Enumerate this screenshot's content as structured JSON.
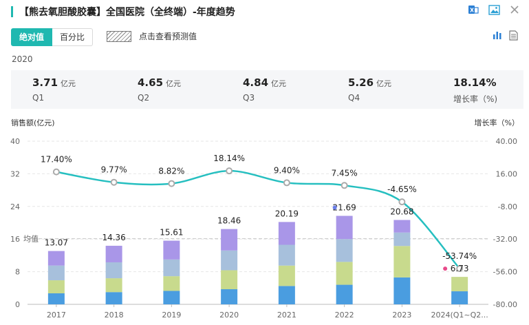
{
  "header": {
    "title": "【熊去氧胆酸胶囊】全国医院（全终端）-年度趋势",
    "icons": [
      "export-excel-icon",
      "image-icon",
      "close-icon"
    ]
  },
  "toolbar": {
    "tabs": [
      {
        "label": "绝对值",
        "active": true
      },
      {
        "label": "百分比",
        "active": false
      }
    ],
    "forecast_label": "点击查看预测值",
    "view_icons": [
      "bar-chart-icon",
      "table-icon"
    ]
  },
  "summary": {
    "year": "2020",
    "stats": [
      {
        "value": "3.71",
        "unit": "亿元",
        "label": "Q1"
      },
      {
        "value": "4.65",
        "unit": "亿元",
        "label": "Q2"
      },
      {
        "value": "4.84",
        "unit": "亿元",
        "label": "Q3"
      },
      {
        "value": "5.26",
        "unit": "亿元",
        "label": "Q4"
      },
      {
        "value": "18.14%",
        "unit": "",
        "label": "增长率（%)"
      }
    ]
  },
  "colors": {
    "accent": "#1fb8b0",
    "q1": "#4a9de0",
    "q2": "#c8da8d",
    "q3": "#a7c0dc",
    "q4": "#a996e8",
    "line": "#26bfc0",
    "marker_blue": "#6a7ee8",
    "marker_pink": "#e84a8a"
  },
  "chart_data": {
    "type": "bar",
    "stacked": true,
    "categories": [
      "2017",
      "2018",
      "2019",
      "2020",
      "2021",
      "2022",
      "2023",
      "2024(Q1~Q2..."
    ],
    "series": [
      {
        "values": [
          2.7,
          3.0,
          3.3,
          3.71,
          4.5,
          4.8,
          6.6,
          3.2
        ]
      },
      {
        "values": [
          3.2,
          3.4,
          3.6,
          4.65,
          5.0,
          5.6,
          7.7,
          3.53
        ]
      },
      {
        "values": [
          3.6,
          3.9,
          4.1,
          4.84,
          5.1,
          5.6,
          3.3,
          0
        ]
      },
      {
        "values": [
          3.57,
          4.06,
          4.61,
          5.26,
          5.59,
          5.69,
          3.08,
          0
        ]
      }
    ],
    "totals": [
      "13.07",
      "14.36",
      "15.61",
      "18.46",
      "20.19",
      "21.69",
      "20.68",
      "6.73"
    ],
    "growth": {
      "values": [
        17.4,
        9.77,
        8.82,
        18.14,
        9.4,
        7.45,
        -4.65,
        -53.74
      ],
      "labels": [
        "17.40%",
        "9.77%",
        "8.82%",
        "18.14%",
        "9.40%",
        "7.45%",
        "-4.65%",
        "-53.74%"
      ]
    },
    "average": 16.1,
    "average_label": "均值",
    "ylabel_left": "销售额(亿元)",
    "ylabel_right": "增长率（%）",
    "yticks_left": [
      "0",
      "8",
      "16",
      "24",
      "32",
      "40"
    ],
    "yticks_right": [
      "-80.00",
      "-56.00",
      "-32.00",
      "-8.00",
      "16.00",
      "40.00"
    ],
    "ylim_left": [
      0,
      40
    ],
    "ylim_right": [
      -80,
      40
    ],
    "grid": true
  }
}
